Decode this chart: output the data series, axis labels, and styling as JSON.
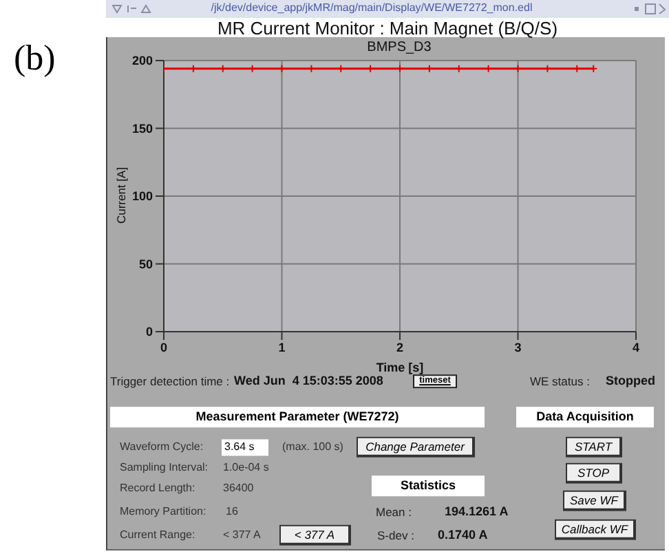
{
  "chart_data": {
    "type": "line",
    "title": "MR Current Monitor : Main Magnet (B/Q/S)",
    "subtitle": "BMPS_D3",
    "xlabel": "Time [s]",
    "ylabel": "Current [A]",
    "x": [
      0,
      0.25,
      0.5,
      0.75,
      1,
      1.25,
      1.5,
      1.75,
      2,
      2.25,
      2.5,
      2.75,
      3,
      3.25,
      3.5,
      3.64
    ],
    "series": [
      {
        "color": "#e00000",
        "values": [
          194,
          194,
          194,
          194,
          194,
          194,
          194,
          194,
          194,
          194,
          194,
          194,
          194,
          194,
          194,
          194
        ]
      }
    ],
    "xlim": [
      0,
      4
    ],
    "xticks": [
      0,
      1,
      2,
      3,
      4
    ],
    "ylim": [
      0,
      200
    ],
    "yticks": [
      0,
      50,
      100,
      150,
      200
    ],
    "grid": true,
    "marker": "cross",
    "line_style": "solid",
    "annotations": [
      "(b)",
      "/jk/dev/device_app/jkMR/mag/main/Display/WE/WE7272_mon.edl",
      "Trigger detection time :",
      "Wed Jun  4 15:03:55 2008",
      "timeset",
      "WE status :",
      "Stopped",
      "Measurement Parameter (WE7272)",
      "Data Acquisition",
      "Waveform Cycle:",
      "3.64 s",
      "(max. 100 s)",
      "Change Parameter",
      "Sampling Interval:",
      "1.0e-04 s",
      "Record Length:",
      "36400",
      "Memory Partition:",
      "16",
      "Current Range:",
      "< 377 A",
      "< 377 A",
      "Statistics",
      "Mean :",
      "194.1261 A",
      "S-dev :",
      "0.1740 A",
      "START",
      "STOP",
      "Save WF",
      "Callback WF"
    ]
  }
}
